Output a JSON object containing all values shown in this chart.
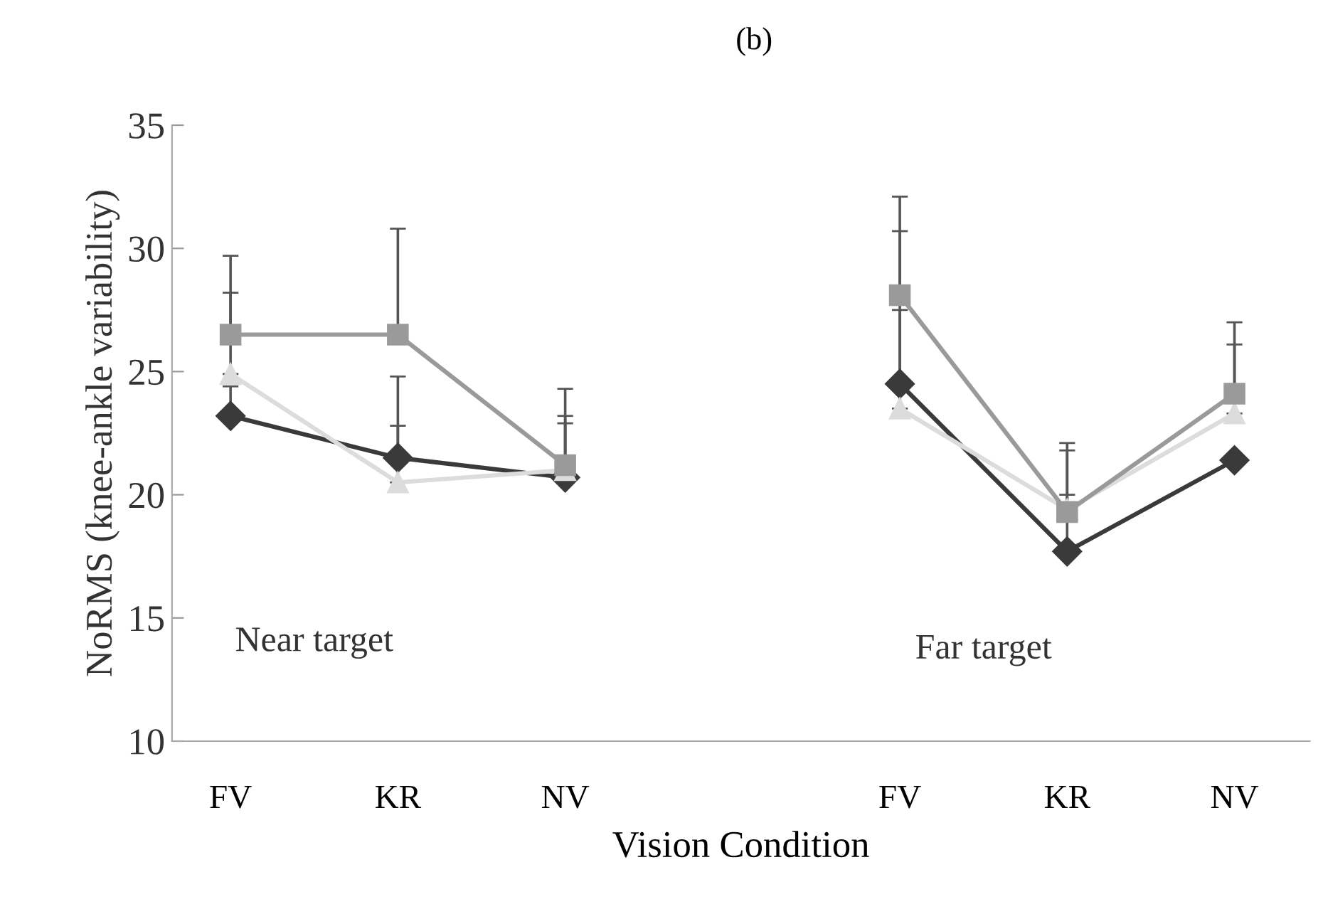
{
  "chart_data": {
    "type": "line",
    "title": "(b)",
    "xlabel": "Vision Condition",
    "ylabel": "NoRMS (knee-ankle variability)",
    "categories": [
      "FV",
      "KR",
      "NV",
      null,
      "FV",
      "KR",
      "NV"
    ],
    "series": [
      {
        "color": "#3a3a3a",
        "marker": "diamond",
        "values": [
          23.2,
          21.5,
          20.7,
          null,
          24.5,
          17.7,
          21.4
        ],
        "errors": [
          [
            23.2,
            24.4
          ],
          [
            21.5,
            24.8
          ],
          [
            20.7,
            22.9
          ],
          null,
          [
            24.5,
            30.7
          ],
          [
            17.7,
            20.0
          ],
          null
        ]
      },
      {
        "color": "#dcdcdc",
        "marker": "triangle",
        "values": [
          24.9,
          20.5,
          21.0,
          null,
          23.5,
          19.4,
          23.3
        ],
        "errors": [
          [
            24.9,
            28.2
          ],
          [
            20.5,
            22.8
          ],
          [
            21.0,
            23.2
          ],
          null,
          [
            23.5,
            27.5
          ],
          [
            19.4,
            21.8
          ],
          [
            23.3,
            26.1
          ]
        ]
      },
      {
        "color": "#9a9a9a",
        "marker": "square",
        "values": [
          26.5,
          26.5,
          21.2,
          null,
          28.1,
          19.3,
          24.1
        ],
        "errors": [
          [
            26.5,
            29.7
          ],
          [
            26.5,
            30.8
          ],
          [
            21.2,
            24.3
          ],
          null,
          [
            28.1,
            32.1
          ],
          [
            19.3,
            22.1
          ],
          [
            24.1,
            27.0
          ]
        ]
      }
    ],
    "ylim": [
      10,
      35
    ],
    "yticks": [
      10,
      15,
      20,
      25,
      30,
      35
    ],
    "grid": false,
    "legend": false,
    "annotations": [
      "Near target",
      "Far target"
    ]
  }
}
